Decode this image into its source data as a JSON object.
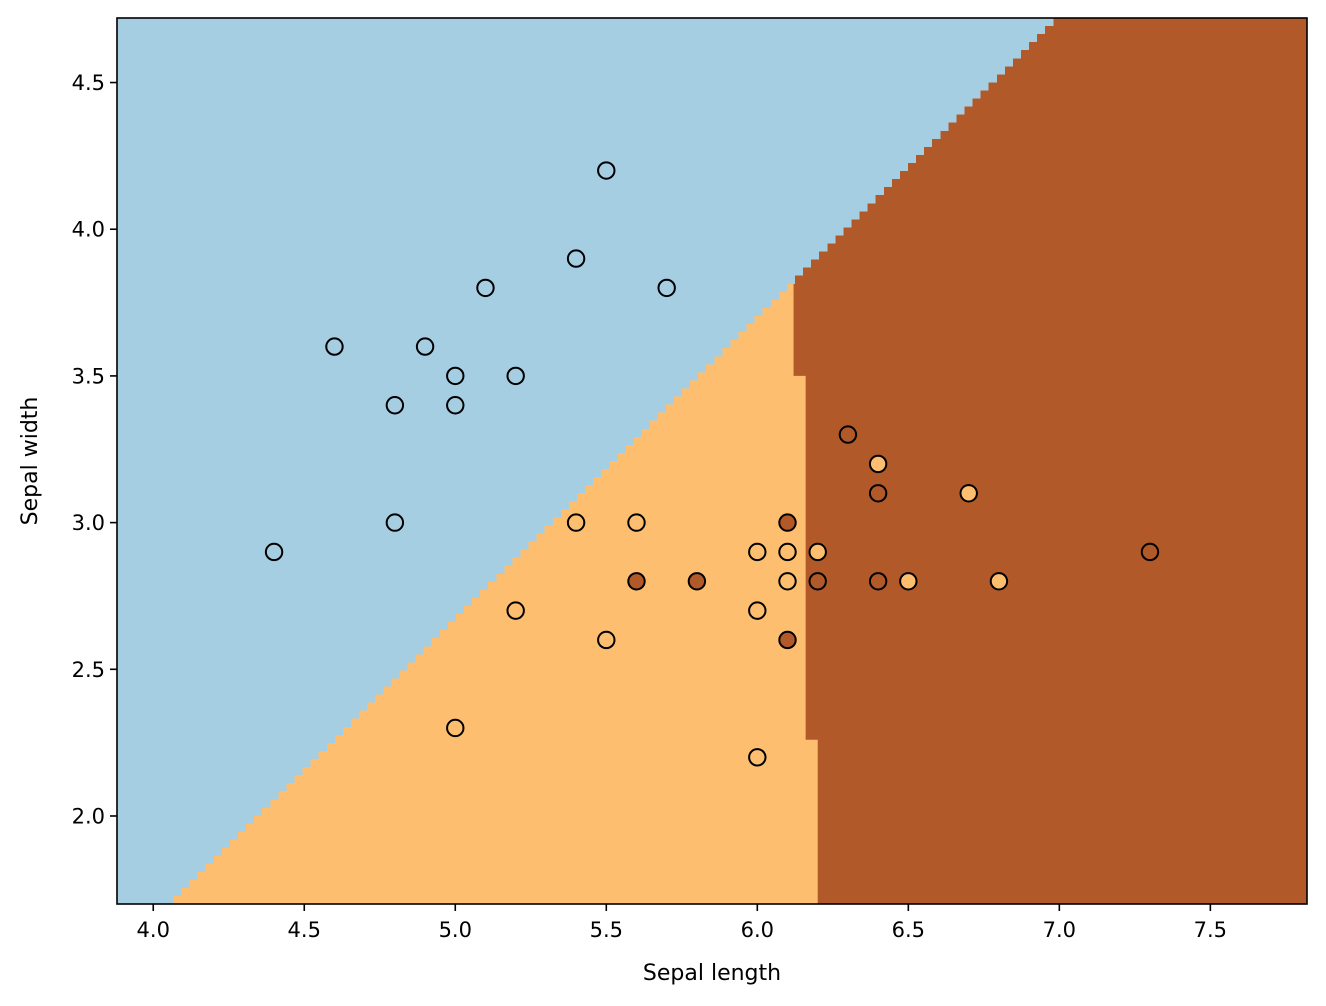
{
  "chart_data": {
    "type": "scatter",
    "title": "",
    "xlabel": "Sepal length",
    "ylabel": "Sepal width",
    "xlim": [
      3.88,
      7.82
    ],
    "ylim": [
      1.7,
      4.72
    ],
    "xticks": [
      4.0,
      4.5,
      5.0,
      5.5,
      6.0,
      6.5,
      7.0,
      7.5
    ],
    "xtick_labels": [
      "4.0",
      "4.5",
      "5.0",
      "5.5",
      "6.0",
      "6.5",
      "7.0",
      "7.5"
    ],
    "yticks": [
      2.0,
      2.5,
      3.0,
      3.5,
      4.0,
      4.5
    ],
    "ytick_labels": [
      "2.0",
      "2.5",
      "3.0",
      "3.5",
      "4.0",
      "4.5"
    ],
    "grid": false,
    "legend": "none",
    "class_colors": [
      "#a6cee3",
      "#fdbf6f",
      "#b15928"
    ],
    "decision_regions": {
      "class_0_boundary_line": [
        [
          4.04,
          1.7
        ],
        [
          6.98,
          4.72
        ]
      ],
      "class_2_boundary_steps": [
        [
          6.12,
          4.72
        ],
        [
          6.12,
          3.5
        ],
        [
          6.16,
          3.5
        ],
        [
          6.16,
          2.26
        ],
        [
          6.2,
          2.26
        ],
        [
          6.2,
          1.7
        ]
      ]
    },
    "points": [
      {
        "x": 4.4,
        "y": 2.9,
        "class": 0
      },
      {
        "x": 4.6,
        "y": 3.6,
        "class": 0
      },
      {
        "x": 4.8,
        "y": 3.4,
        "class": 0
      },
      {
        "x": 4.8,
        "y": 3.0,
        "class": 0
      },
      {
        "x": 4.9,
        "y": 3.6,
        "class": 0
      },
      {
        "x": 5.0,
        "y": 3.5,
        "class": 0
      },
      {
        "x": 5.0,
        "y": 3.4,
        "class": 0
      },
      {
        "x": 5.1,
        "y": 3.8,
        "class": 0
      },
      {
        "x": 5.2,
        "y": 3.5,
        "class": 0
      },
      {
        "x": 5.4,
        "y": 3.9,
        "class": 0
      },
      {
        "x": 5.5,
        "y": 4.2,
        "class": 0
      },
      {
        "x": 5.7,
        "y": 3.8,
        "class": 0
      },
      {
        "x": 5.0,
        "y": 2.3,
        "class": 1
      },
      {
        "x": 5.2,
        "y": 2.7,
        "class": 1
      },
      {
        "x": 5.4,
        "y": 3.0,
        "class": 1
      },
      {
        "x": 5.5,
        "y": 2.6,
        "class": 1
      },
      {
        "x": 5.6,
        "y": 3.0,
        "class": 1
      },
      {
        "x": 6.0,
        "y": 2.9,
        "class": 1
      },
      {
        "x": 6.0,
        "y": 2.7,
        "class": 1
      },
      {
        "x": 6.0,
        "y": 2.2,
        "class": 1
      },
      {
        "x": 6.1,
        "y": 2.9,
        "class": 1
      },
      {
        "x": 6.1,
        "y": 2.8,
        "class": 1
      },
      {
        "x": 6.2,
        "y": 2.9,
        "class": 1
      },
      {
        "x": 6.4,
        "y": 3.2,
        "class": 1
      },
      {
        "x": 6.5,
        "y": 2.8,
        "class": 1
      },
      {
        "x": 6.7,
        "y": 3.1,
        "class": 1
      },
      {
        "x": 6.8,
        "y": 2.8,
        "class": 1
      },
      {
        "x": 5.6,
        "y": 2.8,
        "class": 2
      },
      {
        "x": 5.8,
        "y": 2.8,
        "class": 2
      },
      {
        "x": 6.1,
        "y": 3.0,
        "class": 2
      },
      {
        "x": 6.1,
        "y": 2.6,
        "class": 2
      },
      {
        "x": 6.2,
        "y": 2.8,
        "class": 2
      },
      {
        "x": 6.3,
        "y": 3.3,
        "class": 2
      },
      {
        "x": 6.4,
        "y": 3.1,
        "class": 2
      },
      {
        "x": 6.4,
        "y": 2.8,
        "class": 2
      },
      {
        "x": 7.3,
        "y": 2.9,
        "class": 2
      }
    ]
  }
}
